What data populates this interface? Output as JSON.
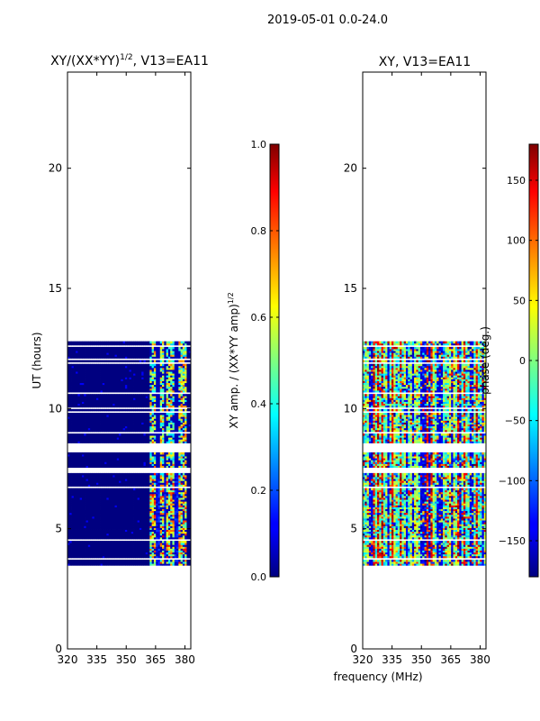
{
  "figure": {
    "suptitle": "2019-05-01 0.0-24.0",
    "xlabel": "frequency (MHz)"
  },
  "chart_data": [
    {
      "type": "heatmap",
      "panel": "left",
      "title_main": "XY/(XX*YY)",
      "title_sup": "1/2",
      "title_tail": ", V13=EA11",
      "xlabel": "",
      "ylabel": "UT (hours)",
      "xlim": [
        320,
        383
      ],
      "ylim": [
        0,
        24
      ],
      "xticks": [
        320,
        335,
        350,
        365,
        380
      ],
      "yticks": [
        0,
        5,
        10,
        15,
        20
      ],
      "colormap": "jet",
      "clim": [
        0.0,
        1.0
      ],
      "colorbar_label_main": "XY amp. / (XX*YY amp)",
      "colorbar_label_sup": "1/2",
      "colorbar_ticks": [
        "0.0",
        "0.2",
        "0.4",
        "0.6",
        "0.8",
        "1.0"
      ],
      "data_time_range_hours": [
        3.4,
        12.8
      ],
      "description": "Mostly near-zero correlation (dark blue) with higher values (0.3–0.9) concentrated between about 362 and 380 MHz"
    },
    {
      "type": "heatmap",
      "panel": "right",
      "title": "XY, V13=EA11",
      "xlabel": "",
      "ylabel": "",
      "xlim": [
        320,
        383
      ],
      "ylim": [
        0,
        24
      ],
      "xticks": [
        320,
        335,
        350,
        365,
        380
      ],
      "yticks": [
        0,
        5,
        10,
        15,
        20
      ],
      "colormap": "jet",
      "clim": [
        -180,
        180
      ],
      "colorbar_label": "phase (deg.)",
      "colorbar_ticks": [
        "−150",
        "−100",
        "−50",
        "0",
        "50",
        "100",
        "150"
      ],
      "data_time_range_hours": [
        3.4,
        12.8
      ],
      "description": "Phase spans the full ±180° range with vertical channel striping"
    }
  ]
}
